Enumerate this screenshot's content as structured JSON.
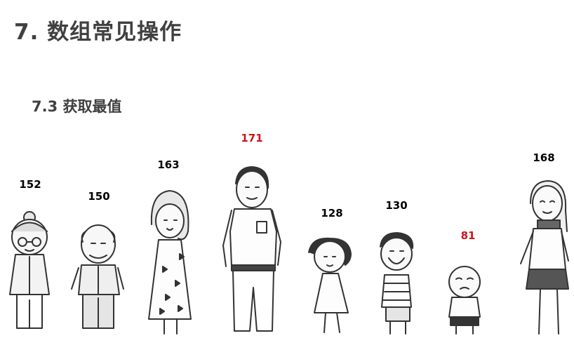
{
  "heading": "7. 数组常见操作",
  "subheading": "7.3 获取最值",
  "colors": {
    "normal": "#000000",
    "extreme": "#d0121b",
    "text": "#404040"
  },
  "people": [
    {
      "label": "152",
      "icon": "grandma-figure",
      "extreme": false
    },
    {
      "label": "150",
      "icon": "grandpa-figure",
      "extreme": false
    },
    {
      "label": "163",
      "icon": "mother-figure",
      "extreme": false
    },
    {
      "label": "171",
      "icon": "father-figure",
      "extreme": true
    },
    {
      "label": "128",
      "icon": "girl-figure",
      "extreme": false
    },
    {
      "label": "130",
      "icon": "boy-figure",
      "extreme": false
    },
    {
      "label": "81",
      "icon": "toddler-figure",
      "extreme": true
    },
    {
      "label": "168",
      "icon": "teen-girl-figure",
      "extreme": false
    }
  ]
}
